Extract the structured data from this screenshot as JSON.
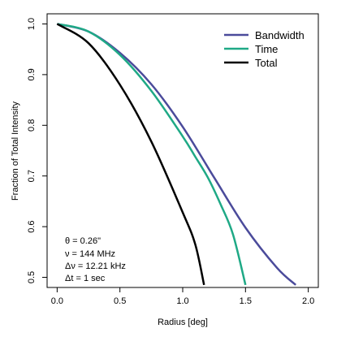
{
  "chart_data": {
    "type": "line",
    "xlabel": "Radius [deg]",
    "ylabel": "Fraction of Total Intensity",
    "xlim": [
      -0.08,
      2.08
    ],
    "ylim": [
      0.48,
      1.02
    ],
    "x_ticks": [
      "0.0",
      "0.5",
      "1.0",
      "1.5",
      "2.0"
    ],
    "x_tick_values": [
      0.0,
      0.5,
      1.0,
      1.5,
      2.0
    ],
    "y_ticks": [
      "0.5",
      "0.6",
      "0.7",
      "0.8",
      "0.9",
      "1.0"
    ],
    "y_tick_values": [
      0.5,
      0.6,
      0.7,
      0.8,
      0.9,
      1.0
    ],
    "series": [
      {
        "name": "Bandwidth",
        "color": "#4b4b9b",
        "points": [
          [
            0.0,
            1.0
          ],
          [
            0.25,
            0.985
          ],
          [
            0.5,
            0.943
          ],
          [
            0.75,
            0.881
          ],
          [
            1.0,
            0.797
          ],
          [
            1.25,
            0.697
          ],
          [
            1.5,
            0.598
          ],
          [
            1.75,
            0.519
          ],
          [
            1.9,
            0.485
          ]
        ]
      },
      {
        "name": "Time",
        "color": "#1fa986",
        "points": [
          [
            0.0,
            1.0
          ],
          [
            0.25,
            0.985
          ],
          [
            0.5,
            0.939
          ],
          [
            0.75,
            0.868
          ],
          [
            1.0,
            0.778
          ],
          [
            1.1,
            0.738
          ],
          [
            1.2,
            0.697
          ],
          [
            1.3,
            0.645
          ],
          [
            1.4,
            0.585
          ],
          [
            1.5,
            0.485
          ]
        ]
      },
      {
        "name": "Total",
        "color": "#000000",
        "points": [
          [
            0.0,
            1.0
          ],
          [
            0.25,
            0.962
          ],
          [
            0.5,
            0.88
          ],
          [
            0.75,
            0.768
          ],
          [
            1.0,
            0.628
          ],
          [
            1.1,
            0.565
          ],
          [
            1.17,
            0.485
          ]
        ]
      }
    ],
    "annotations": [
      "θ = 0.26\"",
      "ν = 144 MHz",
      "Δν = 12.21 kHz",
      "Δt = 1 sec"
    ],
    "legend_position": "top-right",
    "grid": false
  }
}
